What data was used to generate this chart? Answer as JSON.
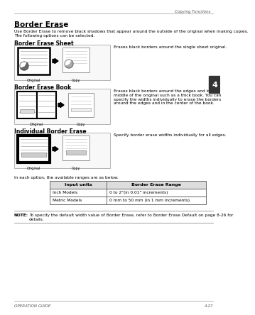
{
  "title": "Border Erase",
  "header_line": "Copying Functions",
  "intro_text": "Use Border Erase to remove black shadows that appear around the outside of the original when making copies.\nThe following options can be selected.",
  "section1_title": "Border Erase Sheet",
  "section1_desc": "Erases black borders around the single sheet original.",
  "section2_title": "Border Erase Book",
  "section2_desc": "Erases black borders around the edges and in the\nmiddle of the original such as a thick book. You can\nspecify the widths individually to erase the borders\naround the edges and in the center of the book.",
  "section3_title": "Individual Border Erase",
  "section3_desc": "Specify border erase widths individually for all edges.",
  "table_intro": "In each option, the available ranges are as below.",
  "table_col1": "Input units",
  "table_col2": "Border Erase Range",
  "table_row1_col1": "Inch Models",
  "table_row1_col2": "0 to 2\"(in 0.01\" increments)",
  "table_row2_col1": "Metric Models",
  "table_row2_col2": "0 mm to 50 mm (in 1 mm increments)",
  "note_bold": "NOTE:",
  "note_rest": " To specify the default width value of Border Erase, refer to Border Erase Default on page 8-26 for\ndetails.",
  "footer_left": "OPERATION GUIDE",
  "footer_right": "4-27",
  "tab_label": "4",
  "bg_color": "#ffffff",
  "text_color": "#000000",
  "gray_color": "#888888",
  "light_gray": "#cccccc",
  "tab_color": "#333333"
}
